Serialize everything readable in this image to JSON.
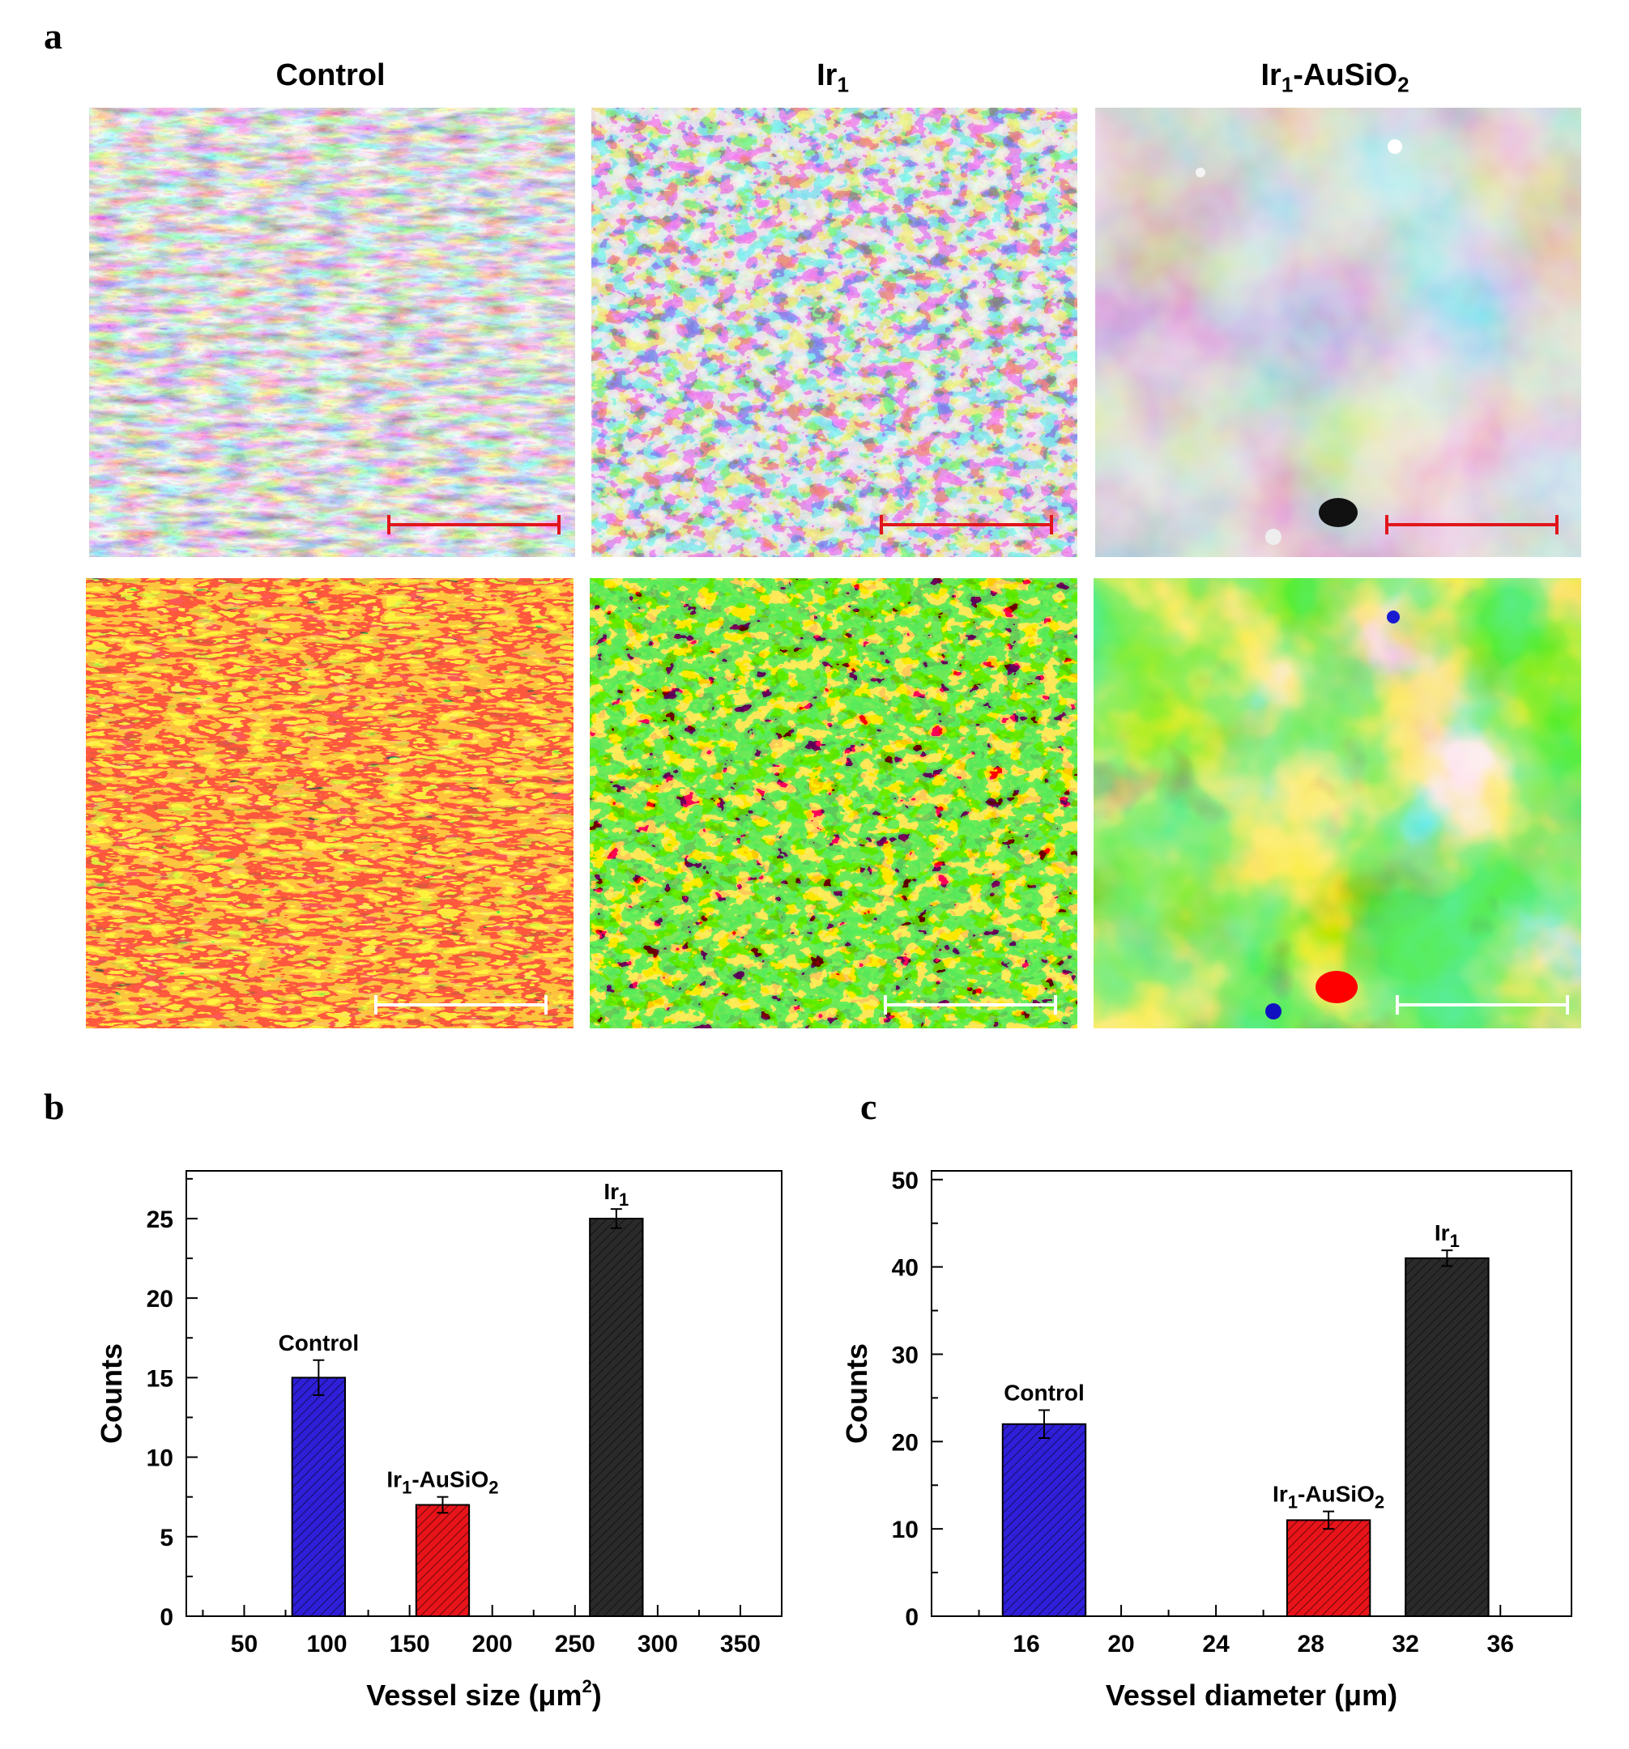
{
  "figure": {
    "panel_a_letter": "a",
    "panel_b_letter": "b",
    "panel_c_letter": "c",
    "columns": [
      {
        "base": "Control",
        "sub": "",
        "tail": ""
      },
      {
        "base": "Ir",
        "sub": "1",
        "tail": ""
      },
      {
        "base": "Ir",
        "sub": "1",
        "tail": "-AuSiO",
        "sub2": "2"
      }
    ],
    "micrographs": {
      "rows": [
        "grayscale",
        "false-color"
      ],
      "scale_bar_colors": {
        "grayscale": "#e0161c",
        "false-color": "#ffffff"
      }
    }
  },
  "chart_data": [
    {
      "type": "bar",
      "panel": "b",
      "xlabel": "Vessel size (μm",
      "xlabel_sup": "2",
      "xlabel_tail": ")",
      "ylabel": "Counts",
      "xlim": [
        15,
        375
      ],
      "ylim": [
        0,
        28
      ],
      "xticks": [
        50,
        100,
        150,
        200,
        250,
        300,
        350
      ],
      "yticks": [
        0,
        5,
        10,
        15,
        20,
        25
      ],
      "bars": [
        {
          "label": "Control",
          "x": 95,
          "width": 32,
          "value": 15,
          "error": 1.1,
          "color": "#2f1fd8"
        },
        {
          "label": "Ir1-AuSiO2",
          "x": 170,
          "width": 32,
          "value": 7,
          "error": 0.5,
          "color": "#e8141a"
        },
        {
          "label": "Ir1",
          "x": 275,
          "width": 32,
          "value": 25,
          "error": 0.6,
          "color": "#2a2a2a"
        }
      ]
    },
    {
      "type": "bar",
      "panel": "c",
      "xlabel": "Vessel diameter (μm)",
      "ylabel": "Counts",
      "xlim": [
        12,
        39
      ],
      "ylim": [
        0,
        51
      ],
      "xticks": [
        16,
        20,
        24,
        28,
        32,
        36
      ],
      "yticks": [
        0,
        10,
        20,
        30,
        40,
        50
      ],
      "bars": [
        {
          "label": "Control",
          "x": 16.75,
          "width": 3.5,
          "value": 22,
          "error": 1.6,
          "color": "#2f1fd8"
        },
        {
          "label": "Ir1-AuSiO2",
          "x": 28.75,
          "width": 3.5,
          "value": 11,
          "error": 1.0,
          "color": "#e8141a"
        },
        {
          "label": "Ir1",
          "x": 33.75,
          "width": 3.5,
          "value": 41,
          "error": 0.9,
          "color": "#2a2a2a"
        }
      ]
    }
  ]
}
